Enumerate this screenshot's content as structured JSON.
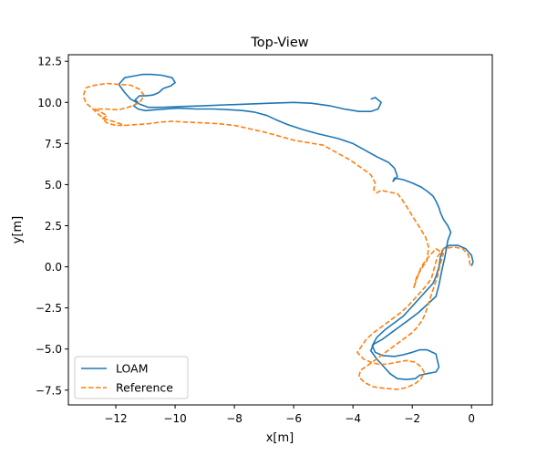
{
  "chart_data": {
    "type": "line",
    "title": "Top-View",
    "xlabel": "x[m]",
    "ylabel": "y[m]",
    "xlim": [
      -13.6,
      0.7
    ],
    "ylim": [
      -8.4,
      12.9
    ],
    "xticks": [
      -12,
      -10,
      -8,
      -6,
      -4,
      -2,
      0
    ],
    "yticks": [
      -7.5,
      -5.0,
      -2.5,
      0.0,
      2.5,
      5.0,
      7.5,
      10.0,
      12.5
    ],
    "xtick_labels": [
      "−12",
      "−10",
      "−8",
      "−6",
      "−4",
      "−2",
      "0"
    ],
    "ytick_labels": [
      "−7.5",
      "−5.0",
      "−2.5",
      "0.0",
      "2.5",
      "5.0",
      "7.5",
      "10.0",
      "12.5"
    ],
    "grid": false,
    "legend_position": "lower-left",
    "series": [
      {
        "name": "LOAM",
        "color": "#1f77b4",
        "dash": "solid",
        "points": [
          [
            0.0,
            0.05
          ],
          [
            0.05,
            0.3
          ],
          [
            0.0,
            0.7
          ],
          [
            -0.2,
            1.1
          ],
          [
            -0.45,
            1.3
          ],
          [
            -0.75,
            1.3
          ],
          [
            -0.95,
            1.1
          ],
          [
            -1.05,
            0.6
          ],
          [
            -1.1,
            0.0
          ],
          [
            -1.2,
            -0.6
          ],
          [
            -1.3,
            -1.0
          ],
          [
            -1.5,
            -1.4
          ],
          [
            -1.7,
            -1.8
          ],
          [
            -1.9,
            -2.2
          ],
          [
            -2.1,
            -2.6
          ],
          [
            -2.3,
            -3.0
          ],
          [
            -2.6,
            -3.4
          ],
          [
            -2.9,
            -3.8
          ],
          [
            -3.2,
            -4.3
          ],
          [
            -3.35,
            -4.8
          ],
          [
            -3.25,
            -5.2
          ],
          [
            -3.0,
            -5.4
          ],
          [
            -2.6,
            -5.45
          ],
          [
            -2.3,
            -5.35
          ],
          [
            -2.0,
            -5.2
          ],
          [
            -1.75,
            -5.05
          ],
          [
            -1.5,
            -5.05
          ],
          [
            -1.2,
            -5.3
          ],
          [
            -1.15,
            -5.7
          ],
          [
            -1.1,
            -6.1
          ],
          [
            -1.2,
            -6.4
          ],
          [
            -1.5,
            -6.5
          ],
          [
            -1.75,
            -6.6
          ],
          [
            -1.9,
            -6.8
          ],
          [
            -2.2,
            -6.85
          ],
          [
            -2.5,
            -6.8
          ],
          [
            -2.75,
            -6.5
          ],
          [
            -2.95,
            -6.1
          ],
          [
            -3.2,
            -5.6
          ],
          [
            -3.4,
            -5.1
          ],
          [
            -3.3,
            -4.7
          ],
          [
            -3.0,
            -4.4
          ],
          [
            -2.7,
            -4.0
          ],
          [
            -2.4,
            -3.6
          ],
          [
            -2.1,
            -3.2
          ],
          [
            -1.8,
            -2.8
          ],
          [
            -1.5,
            -2.3
          ],
          [
            -1.2,
            -1.8
          ],
          [
            -1.1,
            -1.1
          ],
          [
            -1.0,
            -0.2
          ],
          [
            -0.9,
            0.6
          ],
          [
            -0.85,
            1.1
          ],
          [
            -0.8,
            1.6
          ],
          [
            -0.7,
            2.1
          ],
          [
            -0.8,
            2.5
          ],
          [
            -0.95,
            2.9
          ],
          [
            -1.05,
            3.3
          ],
          [
            -1.1,
            3.6
          ],
          [
            -1.2,
            4.0
          ],
          [
            -1.3,
            4.3
          ],
          [
            -1.5,
            4.6
          ],
          [
            -1.7,
            4.85
          ],
          [
            -2.0,
            5.1
          ],
          [
            -2.3,
            5.3
          ],
          [
            -2.6,
            5.4
          ],
          [
            -2.65,
            5.2
          ],
          [
            -2.5,
            5.5
          ],
          [
            -2.6,
            6.0
          ],
          [
            -2.8,
            6.35
          ],
          [
            -3.2,
            6.7
          ],
          [
            -3.6,
            7.1
          ],
          [
            -4.0,
            7.5
          ],
          [
            -4.5,
            7.8
          ],
          [
            -5.2,
            8.1
          ],
          [
            -5.7,
            8.35
          ],
          [
            -6.2,
            8.65
          ],
          [
            -6.6,
            8.95
          ],
          [
            -6.9,
            9.2
          ],
          [
            -7.3,
            9.4
          ],
          [
            -7.7,
            9.5
          ],
          [
            -8.1,
            9.55
          ],
          [
            -8.7,
            9.6
          ],
          [
            -9.3,
            9.6
          ],
          [
            -9.9,
            9.65
          ],
          [
            -10.3,
            9.6
          ],
          [
            -10.7,
            9.55
          ],
          [
            -11.0,
            9.5
          ],
          [
            -11.25,
            9.6
          ],
          [
            -11.4,
            9.8
          ],
          [
            -11.25,
            10.0
          ],
          [
            -11.35,
            10.15
          ],
          [
            -11.2,
            10.4
          ],
          [
            -11.0,
            10.4
          ],
          [
            -10.75,
            10.45
          ],
          [
            -10.55,
            10.6
          ],
          [
            -10.4,
            10.85
          ],
          [
            -10.15,
            11.0
          ],
          [
            -10.0,
            11.2
          ],
          [
            -10.1,
            11.5
          ],
          [
            -10.45,
            11.65
          ],
          [
            -10.8,
            11.7
          ],
          [
            -11.1,
            11.7
          ],
          [
            -11.4,
            11.6
          ],
          [
            -11.7,
            11.5
          ],
          [
            -11.9,
            11.1
          ],
          [
            -11.7,
            10.6
          ],
          [
            -11.5,
            10.2
          ],
          [
            -11.2,
            9.9
          ],
          [
            -10.9,
            9.7
          ],
          [
            -10.4,
            9.7
          ],
          [
            -9.8,
            9.75
          ],
          [
            -9.0,
            9.8
          ],
          [
            -8.3,
            9.85
          ],
          [
            -7.5,
            9.9
          ],
          [
            -6.8,
            9.95
          ],
          [
            -6.0,
            10.0
          ],
          [
            -5.4,
            9.95
          ],
          [
            -4.8,
            9.8
          ],
          [
            -4.3,
            9.6
          ],
          [
            -3.8,
            9.45
          ],
          [
            -3.4,
            9.45
          ],
          [
            -3.15,
            9.6
          ],
          [
            -3.05,
            10.0
          ],
          [
            -3.25,
            10.3
          ],
          [
            -3.4,
            10.2
          ]
        ]
      },
      {
        "name": "Reference",
        "color": "#ff7f0e",
        "dash": "dashed",
        "points": [
          [
            -0.05,
            0.1
          ],
          [
            -0.1,
            0.7
          ],
          [
            -0.3,
            1.1
          ],
          [
            -0.6,
            1.2
          ],
          [
            -0.95,
            1.1
          ],
          [
            -1.15,
            0.6
          ],
          [
            -1.25,
            0.0
          ],
          [
            -1.35,
            -0.7
          ],
          [
            -1.55,
            -1.2
          ],
          [
            -1.75,
            -1.6
          ],
          [
            -1.95,
            -2.0
          ],
          [
            -2.15,
            -2.4
          ],
          [
            -2.4,
            -2.8
          ],
          [
            -2.7,
            -3.2
          ],
          [
            -3.0,
            -3.6
          ],
          [
            -3.3,
            -4.0
          ],
          [
            -3.55,
            -4.4
          ],
          [
            -3.7,
            -4.8
          ],
          [
            -3.85,
            -5.2
          ],
          [
            -3.65,
            -5.6
          ],
          [
            -3.4,
            -5.8
          ],
          [
            -3.1,
            -5.95
          ],
          [
            -2.8,
            -5.9
          ],
          [
            -2.5,
            -5.8
          ],
          [
            -2.2,
            -5.7
          ],
          [
            -1.9,
            -5.8
          ],
          [
            -1.7,
            -6.1
          ],
          [
            -1.6,
            -6.4
          ],
          [
            -1.7,
            -6.8
          ],
          [
            -1.9,
            -7.1
          ],
          [
            -2.2,
            -7.35
          ],
          [
            -2.5,
            -7.45
          ],
          [
            -2.9,
            -7.4
          ],
          [
            -3.3,
            -7.3
          ],
          [
            -3.6,
            -7.05
          ],
          [
            -3.8,
            -6.7
          ],
          [
            -3.75,
            -6.3
          ],
          [
            -3.5,
            -6.0
          ],
          [
            -3.2,
            -5.6
          ],
          [
            -2.9,
            -5.2
          ],
          [
            -2.6,
            -4.8
          ],
          [
            -2.3,
            -4.4
          ],
          [
            -2.0,
            -4.0
          ],
          [
            -1.8,
            -3.6
          ],
          [
            -1.65,
            -3.2
          ],
          [
            -1.55,
            -2.8
          ],
          [
            -1.45,
            -2.2
          ],
          [
            -1.3,
            -1.4
          ],
          [
            -1.15,
            -0.6
          ],
          [
            -1.05,
            0.2
          ],
          [
            -0.95,
            0.8
          ],
          [
            -1.2,
            1.1
          ],
          [
            -1.5,
            0.5
          ],
          [
            -1.7,
            0.0
          ],
          [
            -1.8,
            -0.5
          ],
          [
            -1.9,
            -1.0
          ],
          [
            -1.95,
            -1.3
          ],
          [
            -1.85,
            -0.6
          ],
          [
            -1.65,
            0.0
          ],
          [
            -1.5,
            0.4
          ],
          [
            -1.45,
            1.2
          ],
          [
            -1.55,
            1.8
          ],
          [
            -1.75,
            2.4
          ],
          [
            -2.0,
            3.1
          ],
          [
            -2.2,
            3.7
          ],
          [
            -2.35,
            4.1
          ],
          [
            -2.5,
            4.45
          ],
          [
            -2.8,
            4.55
          ],
          [
            -3.05,
            4.65
          ],
          [
            -3.2,
            4.5
          ],
          [
            -3.3,
            4.7
          ],
          [
            -3.25,
            5.1
          ],
          [
            -3.4,
            5.6
          ],
          [
            -3.7,
            6.0
          ],
          [
            -4.1,
            6.5
          ],
          [
            -4.6,
            7.0
          ],
          [
            -5.0,
            7.4
          ],
          [
            -5.5,
            7.55
          ],
          [
            -6.0,
            7.7
          ],
          [
            -6.5,
            7.95
          ],
          [
            -7.0,
            8.2
          ],
          [
            -7.5,
            8.4
          ],
          [
            -8.0,
            8.6
          ],
          [
            -8.5,
            8.7
          ],
          [
            -9.0,
            8.75
          ],
          [
            -9.6,
            8.8
          ],
          [
            -10.1,
            8.85
          ],
          [
            -10.5,
            8.8
          ],
          [
            -10.9,
            8.7
          ],
          [
            -11.3,
            8.65
          ],
          [
            -11.7,
            8.6
          ],
          [
            -12.0,
            8.6
          ],
          [
            -12.3,
            8.75
          ],
          [
            -12.45,
            9.0
          ],
          [
            -12.3,
            9.2
          ],
          [
            -12.55,
            9.45
          ],
          [
            -12.7,
            9.6
          ],
          [
            -12.35,
            9.6
          ],
          [
            -11.9,
            9.55
          ],
          [
            -11.6,
            9.7
          ],
          [
            -11.35,
            9.85
          ],
          [
            -11.15,
            10.1
          ],
          [
            -11.05,
            10.45
          ],
          [
            -11.2,
            10.8
          ],
          [
            -11.5,
            11.05
          ],
          [
            -11.9,
            11.1
          ],
          [
            -12.3,
            11.15
          ],
          [
            -12.7,
            11.05
          ],
          [
            -13.0,
            10.9
          ],
          [
            -13.1,
            10.4
          ],
          [
            -13.0,
            9.95
          ],
          [
            -12.8,
            9.65
          ],
          [
            -12.6,
            9.3
          ],
          [
            -12.4,
            9.0
          ],
          [
            -12.0,
            8.8
          ],
          [
            -11.7,
            8.6
          ]
        ]
      }
    ]
  }
}
